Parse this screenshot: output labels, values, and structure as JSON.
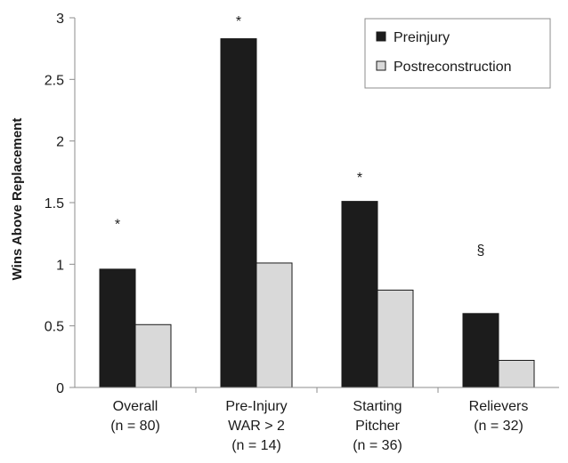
{
  "chart_data": {
    "type": "bar",
    "title": "",
    "xlabel": "",
    "ylabel": "Wins Above Replacement",
    "ylim": [
      0,
      3
    ],
    "yticks": [
      "0",
      "0.5",
      "1",
      "1.5",
      "2",
      "2.5",
      "3"
    ],
    "grid": false,
    "legend_position": "top-right",
    "categories": [
      [
        "Overall",
        "(n = 80)"
      ],
      [
        "Pre-Injury",
        "WAR > 2",
        "(n = 14)"
      ],
      [
        "Starting",
        "Pitcher",
        "(n = 36)"
      ],
      [
        "Relievers",
        "(n = 32)"
      ]
    ],
    "series": [
      {
        "name": "Preinjury",
        "values": [
          0.96,
          2.83,
          1.51,
          0.6
        ],
        "color": "#1c1c1c"
      },
      {
        "name": "Postreconstruction",
        "values": [
          0.51,
          1.01,
          0.79,
          0.22
        ],
        "color": "#d9d9d9"
      }
    ],
    "annotations": [
      {
        "category_index": 0,
        "text": "*",
        "y": 1.33
      },
      {
        "category_index": 1,
        "text": "*",
        "y": 2.98
      },
      {
        "category_index": 2,
        "text": "*",
        "y": 1.71
      },
      {
        "category_index": 3,
        "text": "§",
        "y": 1.12
      }
    ]
  }
}
